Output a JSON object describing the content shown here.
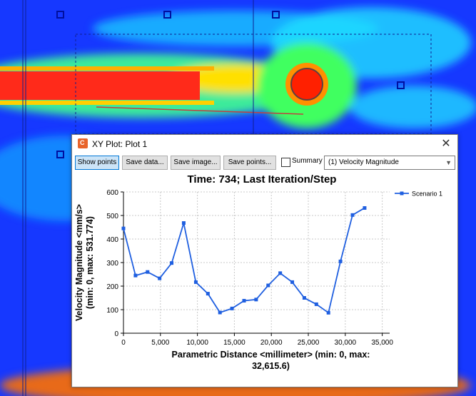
{
  "dialog": {
    "title": "XY Plot: Plot 1",
    "close_label": "✕"
  },
  "toolbar": {
    "show_points_label": "Show points",
    "save_data_label": "Save data...",
    "save_image_label": "Save image...",
    "save_points_label": "Save points...",
    "summary_label": "Summary",
    "summary_checked": false,
    "variable_select_value": "(1) Velocity Magnitude"
  },
  "colors": {
    "series": "#1f5fe0",
    "accent": "#0078d7"
  },
  "chart_data": {
    "type": "line",
    "title": "Time: 734; Last Iteration/Step",
    "xlabel": "Parametric Distance <millimeter> (min: 0, max: 32,615.6)",
    "ylabel": "Velocity Magnitude <mm/s> (min: 0, max: 531.774)",
    "xlim": [
      0,
      36000
    ],
    "ylim": [
      0,
      600
    ],
    "x_ticks": [
      "0",
      "5,000",
      "10,000",
      "15,000",
      "20,000",
      "25,000",
      "30,000",
      "35,000"
    ],
    "y_ticks": [
      "0",
      "100",
      "200",
      "300",
      "400",
      "500",
      "600"
    ],
    "legend_position": "top-right",
    "grid": true,
    "series": [
      {
        "name": "Scenario 1",
        "x": [
          0,
          1630,
          3260,
          4890,
          6520,
          8150,
          9790,
          11420,
          13050,
          14680,
          16310,
          17940,
          19570,
          21200,
          22830,
          24460,
          26090,
          27720,
          29350,
          30980,
          32615.6
        ],
        "y": [
          445,
          245,
          260,
          233,
          298,
          468,
          217,
          168,
          88,
          105,
          138,
          143,
          203,
          255,
          217,
          150,
          123,
          87,
          305,
          502,
          531.774
        ]
      }
    ]
  }
}
